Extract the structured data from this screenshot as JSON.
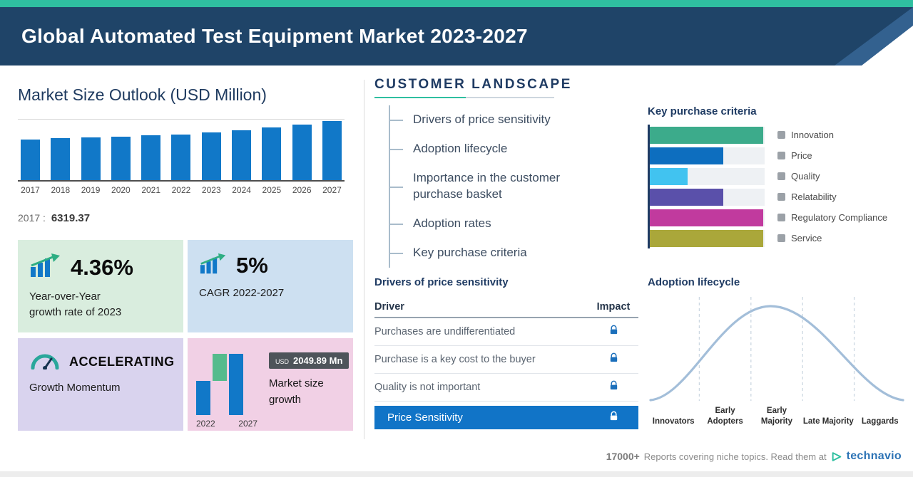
{
  "header": {
    "title": "Global Automated Test Equipment Market 2023-2027"
  },
  "colors": {
    "accent_teal": "#2fbfa0",
    "header_navy": "#1f4468",
    "bar_blue": "#1178c8",
    "highlight_row_blue": "#1174c7",
    "card_mint": "#d9edde",
    "card_blue": "#cde0f1",
    "card_lavender": "#d9d3ee",
    "card_pink": "#f1d0e5"
  },
  "market_size": {
    "title": "Market Size Outlook (USD Million)",
    "base_label": "2017 :",
    "base_value": "6319.37",
    "chart_data": {
      "type": "bar",
      "categories": [
        "2017",
        "2018",
        "2019",
        "2020",
        "2021",
        "2022",
        "2023",
        "2024",
        "2025",
        "2026",
        "2027"
      ],
      "values": [
        6319.37,
        6480,
        6650,
        6780,
        6930,
        7100,
        7410,
        7780,
        8230,
        8680,
        9149.89
      ],
      "title": "Market Size Outlook (USD Million)",
      "xlabel": "Year",
      "ylabel": "USD Million",
      "ylim": [
        0,
        9400
      ],
      "bar_color": "#1178c8",
      "note": "2017 labeled 6319.37; other values estimated from bar heights, 2027 = 2022 + 2049.89 growth"
    }
  },
  "stat_cards": {
    "yoy": {
      "value": "4.36%",
      "line1": "Year-over-Year",
      "line2": "growth rate of 2023"
    },
    "cagr": {
      "value": "5%",
      "line1": "CAGR 2022-2027"
    },
    "momentum": {
      "value": "ACCELERATING",
      "line1": "Growth Momentum"
    },
    "growth": {
      "badge_currency": "USD",
      "badge_value": "2049.89 Mn",
      "label": "Market size growth",
      "year_start": "2022",
      "year_end": "2027"
    }
  },
  "customer_landscape": {
    "title": "CUSTOMER LANDSCAPE",
    "items": [
      "Drivers of price sensitivity",
      "Adoption lifecycle",
      "Importance in the customer purchase basket",
      "Adoption rates",
      "Key purchase criteria"
    ]
  },
  "key_purchase_criteria": {
    "title": "Key purchase criteria",
    "chart_data": {
      "type": "bar",
      "orientation": "horizontal",
      "categories": [
        "Innovation",
        "Price",
        "Quality",
        "Relatability",
        "Regulatory Compliance",
        "Service"
      ],
      "values": [
        99,
        64,
        33,
        64,
        99,
        99
      ],
      "unit": "relative bar length, percent of track",
      "colors": [
        "#3cab8b",
        "#0d6ebf",
        "#41c3f0",
        "#5a50aa",
        "#c13a9e",
        "#aaa73a"
      ],
      "legend_position": "right"
    }
  },
  "price_sensitivity": {
    "title": "Drivers of price sensitivity",
    "columns": [
      "Driver",
      "Impact"
    ],
    "rows": [
      "Purchases are undifferentiated",
      "Purchase is a key cost to the buyer",
      "Quality is not important"
    ],
    "highlight_label": "Price Sensitivity"
  },
  "adoption_lifecycle": {
    "title": "Adoption lifecycle",
    "chart_data": {
      "type": "area",
      "curve": "bell",
      "categories": [
        "Innovators",
        "Early Adopters",
        "Early Majority",
        "Late Majority",
        "Laggards"
      ]
    },
    "stages": [
      "Innovators",
      "Early Adopters",
      "Early Majority",
      "Late Majority",
      "Laggards"
    ]
  },
  "footer": {
    "count": "17000+",
    "text": "Reports covering niche topics. Read them at",
    "brand": "technavio"
  }
}
